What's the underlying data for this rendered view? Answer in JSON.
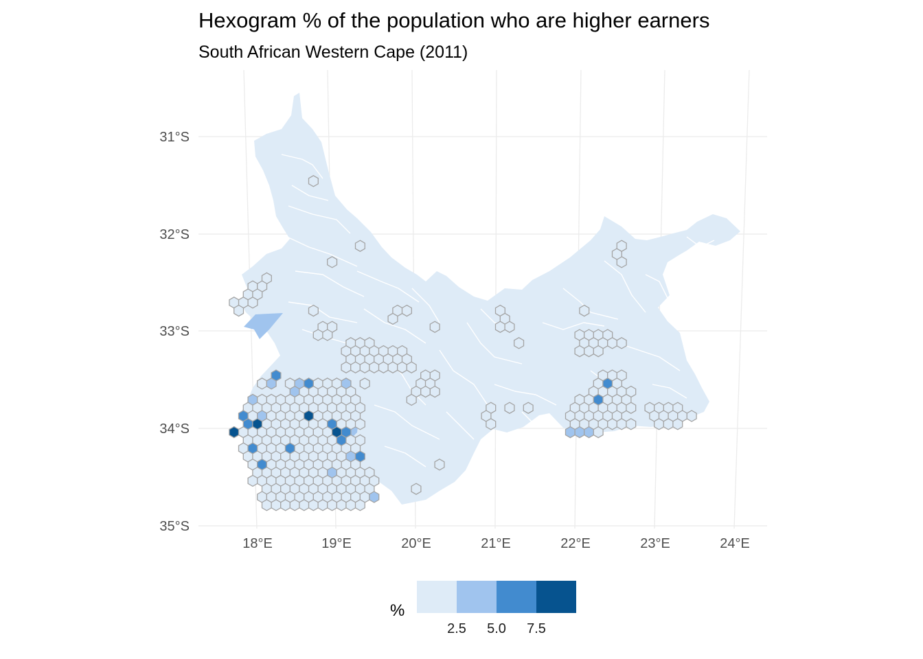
{
  "title": "Hexogram % of the population who are higher earners",
  "subtitle": "South African Western Cape (2011)",
  "chart_data": {
    "type": "map",
    "map_type": "hexogram choropleth",
    "lat_axis_labels": [
      "31°S",
      "32°S",
      "33°S",
      "34°S",
      "35°S"
    ],
    "lon_axis_labels": [
      "18°E",
      "19°E",
      "20°E",
      "21°E",
      "22°E",
      "23°E",
      "24°E"
    ],
    "lat_range": [
      -35.0,
      -30.4
    ],
    "lon_range": [
      17.4,
      24.4
    ],
    "grid": true,
    "legend": {
      "title": "%",
      "position": "bottom",
      "breaks": [
        2.5,
        5.0,
        7.5
      ],
      "break_labels": [
        "2.5",
        "5.0",
        "7.5"
      ],
      "bin_colors": [
        "#deebf7",
        "#a0c4ee",
        "#428bcf",
        "#06538f"
      ]
    },
    "colors": {
      "province_fill": "#deebf7",
      "municipal_boundary": "#ffffff",
      "hex_outline": "#a3a3a3",
      "grid": "#ebebeb"
    }
  }
}
